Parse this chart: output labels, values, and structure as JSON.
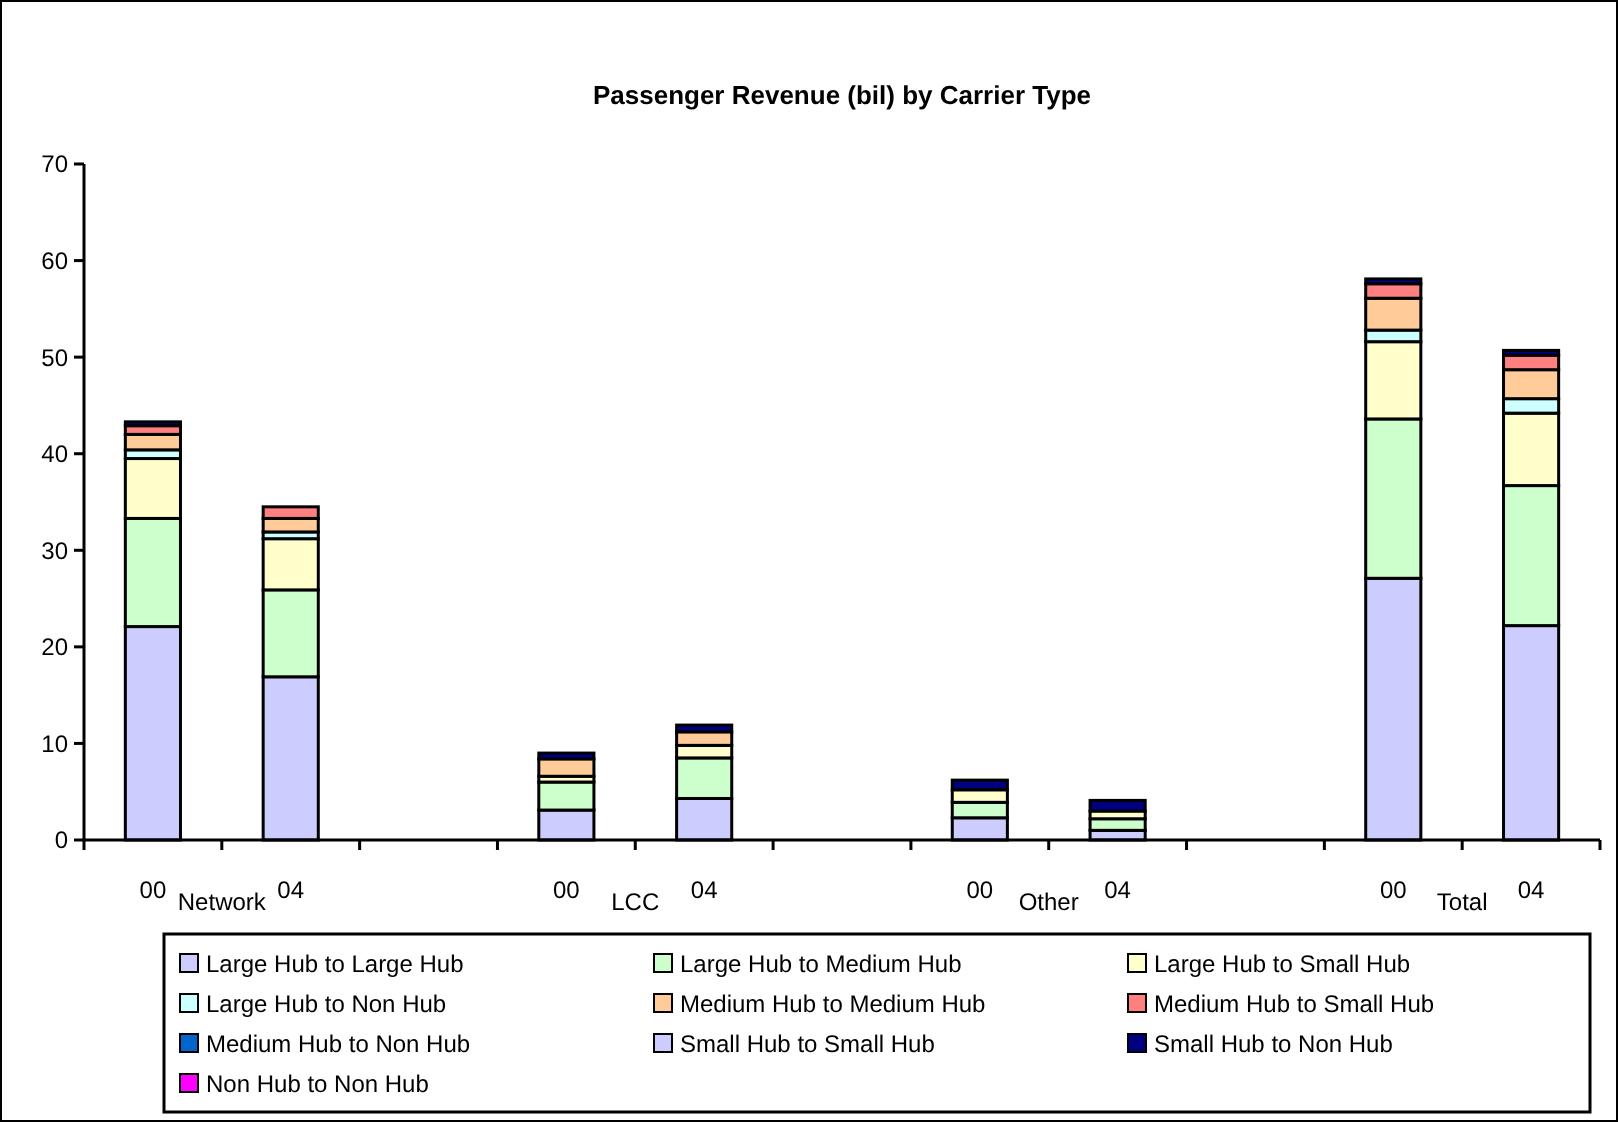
{
  "chart_data": {
    "type": "bar",
    "title": "Passenger Revenue (bil) by Carrier Type",
    "stacked": true,
    "categories": [
      "00",
      "04",
      null,
      "00",
      "04",
      null,
      "00",
      "04",
      null,
      "00",
      "04"
    ],
    "annotations": [
      "Network",
      "LCC",
      "Other",
      "Total"
    ],
    "series": [
      {
        "name": "Large Hub to Large Hub",
        "color": "#ccccff",
        "values": [
          22.1,
          16.9,
          null,
          3.1,
          4.3,
          null,
          2.3,
          1.0,
          null,
          27.1,
          22.2
        ]
      },
      {
        "name": "Large Hub to Medium Hub",
        "color": "#ccffcc",
        "values": [
          11.2,
          9.0,
          null,
          2.9,
          4.2,
          null,
          1.6,
          1.2,
          null,
          16.5,
          14.5
        ]
      },
      {
        "name": "Large Hub to Small Hub",
        "color": "#ffffcc",
        "values": [
          6.2,
          5.3,
          null,
          0.6,
          1.3,
          null,
          1.3,
          0.8,
          null,
          8.0,
          7.5
        ]
      },
      {
        "name": "Large Hub to Non Hub",
        "color": "#ccffff",
        "values": [
          0.9,
          0.7,
          null,
          0,
          0,
          null,
          0,
          0,
          null,
          1.2,
          1.5
        ]
      },
      {
        "name": "Medium Hub to Medium Hub",
        "color": "#ffcc99",
        "values": [
          1.6,
          1.4,
          null,
          1.8,
          1.4,
          null,
          0,
          0,
          null,
          3.3,
          3.0
        ]
      },
      {
        "name": "Medium Hub to Small Hub",
        "color": "#ff8080",
        "values": [
          0.9,
          1.2,
          null,
          0,
          0,
          null,
          0,
          0,
          null,
          1.5,
          1.5
        ]
      },
      {
        "name": "Medium Hub to Non Hub",
        "color": "#0066cc",
        "values": [
          0,
          0,
          null,
          0,
          0,
          null,
          0,
          0,
          null,
          0,
          0
        ]
      },
      {
        "name": "Small Hub to Small Hub",
        "color": "#ccccff",
        "values": [
          0,
          0,
          null,
          0,
          0,
          null,
          0,
          0,
          null,
          0,
          0
        ]
      },
      {
        "name": "Small Hub to Non Hub",
        "color": "#000080",
        "values": [
          0.4,
          0,
          null,
          0.6,
          0.7,
          null,
          1.0,
          1.1,
          null,
          0.5,
          0.5
        ]
      },
      {
        "name": "Non Hub to Non Hub",
        "color": "#ff00ff",
        "values": [
          0,
          0,
          null,
          0,
          0,
          null,
          0,
          0,
          null,
          0,
          0
        ]
      }
    ],
    "ylim": [
      0,
      70
    ],
    "yticks": [
      0,
      10,
      20,
      30,
      40,
      50,
      60,
      70
    ],
    "grid": false,
    "legend": "bottom"
  }
}
